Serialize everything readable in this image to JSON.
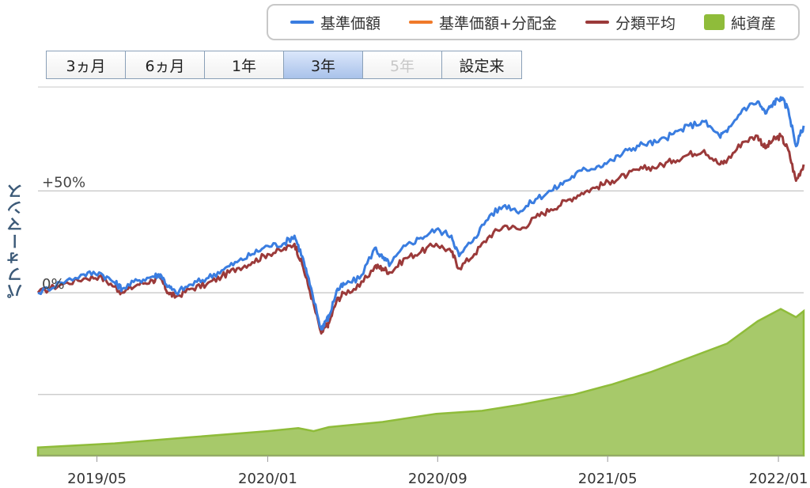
{
  "legend": [
    {
      "label": "基準価額",
      "color": "#3a7de0",
      "kind": "line"
    },
    {
      "label": "基準価額+分配金",
      "color": "#f07a2a",
      "kind": "line"
    },
    {
      "label": "分類平均",
      "color": "#9b3a3a",
      "kind": "line"
    },
    {
      "label": "純資産",
      "color": "#8fbc3a",
      "kind": "area"
    }
  ],
  "range_buttons": [
    {
      "label": "3ヵ月",
      "state": "normal"
    },
    {
      "label": "6ヵ月",
      "state": "normal"
    },
    {
      "label": "1年",
      "state": "normal"
    },
    {
      "label": "3年",
      "state": "active"
    },
    {
      "label": "5年",
      "state": "disabled"
    },
    {
      "label": "設定来",
      "state": "normal"
    }
  ],
  "chart_data": {
    "type": "line",
    "ylabel": "パフォーマンス",
    "y_ticks": [
      {
        "value": 50,
        "label": "+50%"
      },
      {
        "value": 0,
        "label": "0%"
      },
      {
        "value": -50,
        "label": ""
      }
    ],
    "ylim": [
      -80,
      103
    ],
    "x_ticks": [
      {
        "t": 0.077,
        "label": "2019/05"
      },
      {
        "t": 0.3,
        "label": "2020/01"
      },
      {
        "t": 0.522,
        "label": "2020/09"
      },
      {
        "t": 0.744,
        "label": "2021/05"
      },
      {
        "t": 0.967,
        "label": "2022/01"
      }
    ],
    "grid": true,
    "series": [
      {
        "name": "基準価額",
        "color": "#3a7de0",
        "points": [
          [
            0.0,
            0
          ],
          [
            0.03,
            5
          ],
          [
            0.06,
            9
          ],
          [
            0.08,
            10
          ],
          [
            0.1,
            5
          ],
          [
            0.11,
            2
          ],
          [
            0.13,
            6
          ],
          [
            0.15,
            8
          ],
          [
            0.16,
            9
          ],
          [
            0.17,
            3
          ],
          [
            0.18,
            0
          ],
          [
            0.2,
            4
          ],
          [
            0.22,
            7
          ],
          [
            0.24,
            11
          ],
          [
            0.26,
            15
          ],
          [
            0.28,
            19
          ],
          [
            0.3,
            23
          ],
          [
            0.32,
            24
          ],
          [
            0.335,
            28
          ],
          [
            0.345,
            18
          ],
          [
            0.355,
            4
          ],
          [
            0.37,
            -18
          ],
          [
            0.375,
            -14
          ],
          [
            0.38,
            -12
          ],
          [
            0.39,
            1
          ],
          [
            0.4,
            4
          ],
          [
            0.42,
            7
          ],
          [
            0.44,
            22
          ],
          [
            0.45,
            17
          ],
          [
            0.46,
            14
          ],
          [
            0.48,
            23
          ],
          [
            0.5,
            27
          ],
          [
            0.52,
            31
          ],
          [
            0.54,
            28
          ],
          [
            0.55,
            18
          ],
          [
            0.57,
            27
          ],
          [
            0.59,
            38
          ],
          [
            0.61,
            43
          ],
          [
            0.63,
            40
          ],
          [
            0.65,
            46
          ],
          [
            0.67,
            50
          ],
          [
            0.69,
            55
          ],
          [
            0.71,
            60
          ],
          [
            0.73,
            62
          ],
          [
            0.75,
            65
          ],
          [
            0.77,
            70
          ],
          [
            0.79,
            73
          ],
          [
            0.81,
            74
          ],
          [
            0.83,
            78
          ],
          [
            0.85,
            82
          ],
          [
            0.87,
            84
          ],
          [
            0.89,
            77
          ],
          [
            0.9,
            79
          ],
          [
            0.92,
            90
          ],
          [
            0.94,
            94
          ],
          [
            0.95,
            88
          ],
          [
            0.96,
            93
          ],
          [
            0.97,
            96
          ],
          [
            0.98,
            90
          ],
          [
            0.99,
            72
          ],
          [
            1.0,
            82
          ]
        ]
      },
      {
        "name": "分類平均",
        "color": "#9b3a3a",
        "points": [
          [
            0.0,
            0
          ],
          [
            0.03,
            4
          ],
          [
            0.06,
            7
          ],
          [
            0.08,
            8
          ],
          [
            0.1,
            3
          ],
          [
            0.11,
            0
          ],
          [
            0.13,
            4
          ],
          [
            0.15,
            6
          ],
          [
            0.16,
            7
          ],
          [
            0.17,
            0
          ],
          [
            0.18,
            -2
          ],
          [
            0.2,
            2
          ],
          [
            0.22,
            4
          ],
          [
            0.24,
            8
          ],
          [
            0.26,
            12
          ],
          [
            0.28,
            15
          ],
          [
            0.3,
            19
          ],
          [
            0.32,
            21
          ],
          [
            0.335,
            24
          ],
          [
            0.345,
            14
          ],
          [
            0.355,
            1
          ],
          [
            0.37,
            -20
          ],
          [
            0.375,
            -17
          ],
          [
            0.38,
            -15
          ],
          [
            0.39,
            -4
          ],
          [
            0.4,
            0
          ],
          [
            0.42,
            3
          ],
          [
            0.44,
            13
          ],
          [
            0.45,
            12
          ],
          [
            0.46,
            10
          ],
          [
            0.48,
            17
          ],
          [
            0.5,
            20
          ],
          [
            0.52,
            24
          ],
          [
            0.54,
            20
          ],
          [
            0.55,
            12
          ],
          [
            0.57,
            19
          ],
          [
            0.59,
            28
          ],
          [
            0.61,
            33
          ],
          [
            0.63,
            31
          ],
          [
            0.65,
            37
          ],
          [
            0.67,
            41
          ],
          [
            0.69,
            45
          ],
          [
            0.71,
            49
          ],
          [
            0.73,
            52
          ],
          [
            0.75,
            55
          ],
          [
            0.77,
            58
          ],
          [
            0.79,
            61
          ],
          [
            0.81,
            62
          ],
          [
            0.83,
            65
          ],
          [
            0.85,
            68
          ],
          [
            0.87,
            70
          ],
          [
            0.89,
            63
          ],
          [
            0.9,
            65
          ],
          [
            0.92,
            74
          ],
          [
            0.94,
            77
          ],
          [
            0.95,
            71
          ],
          [
            0.96,
            75
          ],
          [
            0.97,
            77
          ],
          [
            0.98,
            70
          ],
          [
            0.99,
            55
          ],
          [
            1.0,
            63
          ]
        ]
      }
    ],
    "area": {
      "name": "純資産",
      "color": "#8fbc3a",
      "points": [
        [
          0.0,
          -76
        ],
        [
          0.1,
          -74
        ],
        [
          0.2,
          -71
        ],
        [
          0.3,
          -68
        ],
        [
          0.34,
          -66.5
        ],
        [
          0.36,
          -68
        ],
        [
          0.38,
          -66
        ],
        [
          0.45,
          -63.5
        ],
        [
          0.52,
          -59.5
        ],
        [
          0.58,
          -58
        ],
        [
          0.63,
          -55
        ],
        [
          0.7,
          -50
        ],
        [
          0.75,
          -45
        ],
        [
          0.8,
          -39
        ],
        [
          0.85,
          -32
        ],
        [
          0.9,
          -25
        ],
        [
          0.94,
          -14
        ],
        [
          0.97,
          -8
        ],
        [
          0.99,
          -12
        ],
        [
          1.0,
          -9
        ]
      ]
    }
  }
}
